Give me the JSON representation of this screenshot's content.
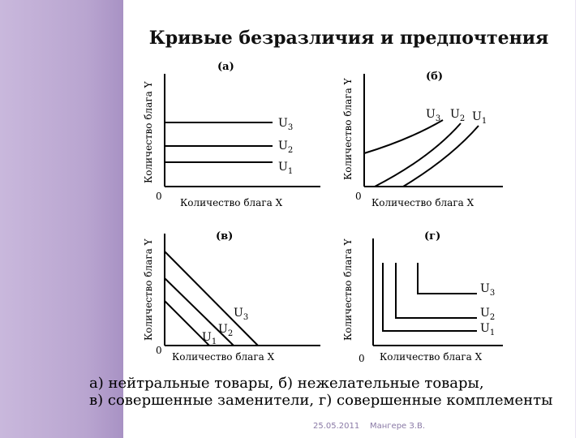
{
  "slide": {
    "title": "Кривые безразличия и предпочтения",
    "caption_line1": "а) нейтральные товары, б) нежелательные товары,",
    "caption_line2": "в) совершенные заменители, г) совершенные комплементы",
    "footer_date": "25.05.2011",
    "footer_author": "Мангере З.В."
  },
  "panels": [
    {
      "id": "a",
      "label": "(а)",
      "ylabel": "Количество блага Y",
      "xlabel": "Количество блага X",
      "origin": "0",
      "curves": [
        {
          "name": "U",
          "sub": "3"
        },
        {
          "name": "U",
          "sub": "2"
        },
        {
          "name": "U",
          "sub": "1"
        }
      ]
    },
    {
      "id": "b",
      "label": "(б)",
      "ylabel": "Количество блага Y",
      "xlabel": "Количество блага X",
      "origin": "0",
      "curves": [
        {
          "name": "U",
          "sub": "3"
        },
        {
          "name": "U",
          "sub": "2"
        },
        {
          "name": "U",
          "sub": "1"
        }
      ]
    },
    {
      "id": "c",
      "label": "(в)",
      "ylabel": "Количество блага Y",
      "xlabel": "Количество блага X",
      "origin": "0",
      "curves": [
        {
          "name": "U",
          "sub": "3"
        },
        {
          "name": "U",
          "sub": "2"
        },
        {
          "name": "U",
          "sub": "1"
        }
      ]
    },
    {
      "id": "d",
      "label": "(г)",
      "ylabel": "Количество блага Y",
      "xlabel": "Количество блага X",
      "origin": "0",
      "curves": [
        {
          "name": "U",
          "sub": "3"
        },
        {
          "name": "U",
          "sub": "2"
        },
        {
          "name": "U",
          "sub": "1"
        }
      ]
    }
  ]
}
